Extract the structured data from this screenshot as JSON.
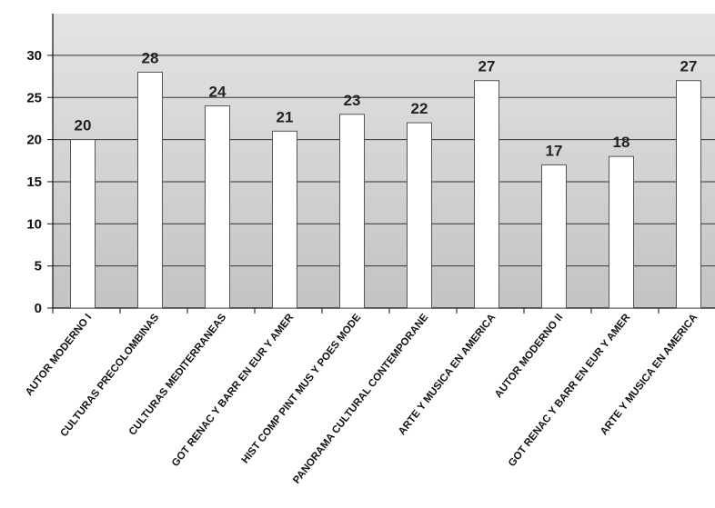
{
  "chart_data": {
    "type": "bar",
    "title": "",
    "xlabel": "",
    "ylabel": "",
    "ylim": [
      0,
      35
    ],
    "yticks": [
      0,
      5,
      10,
      15,
      20,
      25,
      30
    ],
    "grid": true,
    "legend": "none",
    "categories": [
      "AUTOR MODERNO I",
      "CULTURAS PRECOLOMBINAS",
      "CULTURAS MEDITERRANEAS",
      "GOT RENAC Y BARR EN EUR Y AMER",
      "HIST COMP PINT MUS Y POES MODE",
      "PANORAMA CULTURAL CONTEMPORANE",
      "ARTE Y MUSICA EN AMERICA",
      "AUTOR MODERNO II",
      "GOT RENAC Y BARR EN EUR Y AMER",
      "ARTE Y MUSICA EN AMERICA"
    ],
    "values": [
      20,
      28,
      24,
      21,
      23,
      22,
      27,
      17,
      18,
      27
    ],
    "colors": {
      "plot_background": "#c9c9c9",
      "bar_fill": "#ffffff",
      "bar_stroke": "#555555",
      "gridline": "#333333"
    }
  }
}
